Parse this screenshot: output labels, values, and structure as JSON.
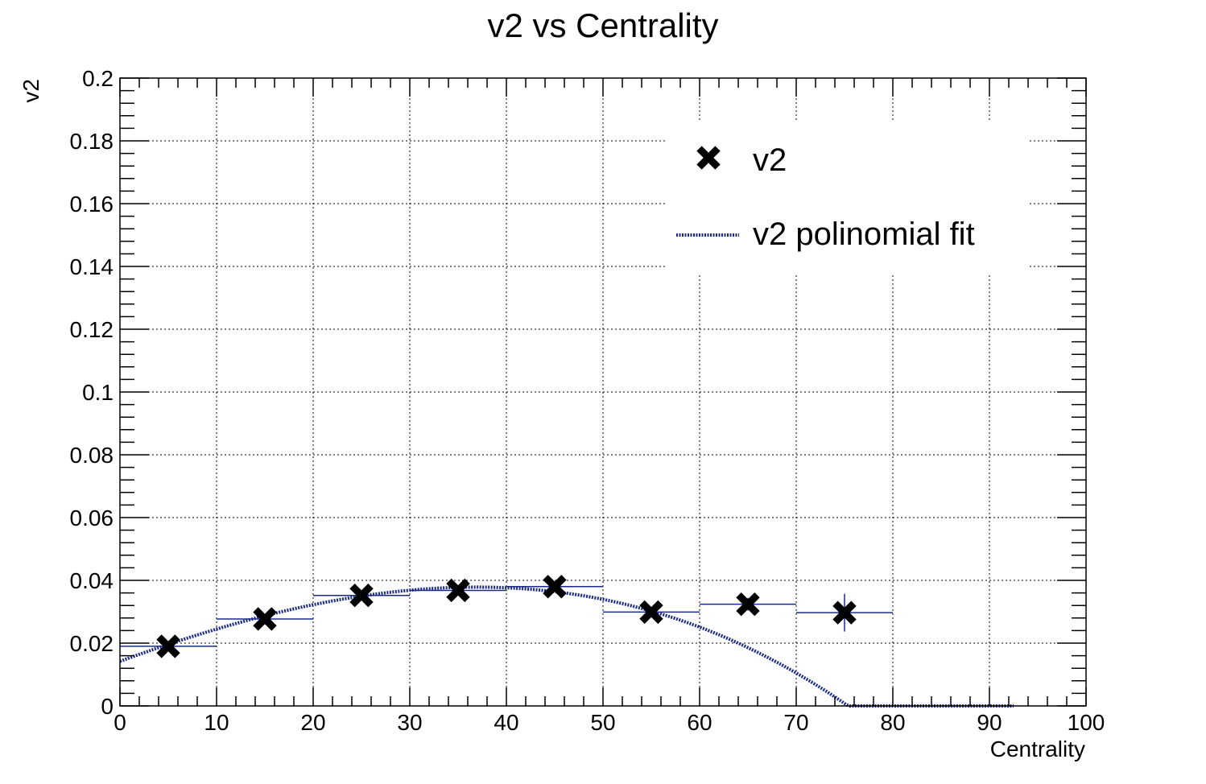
{
  "chart_data": {
    "type": "scatter",
    "title": "v2 vs Centrality",
    "xlabel": "Centrality",
    "ylabel": "v2",
    "xlim": [
      0,
      100
    ],
    "ylim": [
      0,
      0.2
    ],
    "grid": true,
    "x_ticks": [
      0,
      10,
      20,
      30,
      40,
      50,
      60,
      70,
      80,
      90,
      100
    ],
    "x_tick_labels": [
      "0",
      "10",
      "20",
      "30",
      "40",
      "50",
      "60",
      "70",
      "80",
      "90",
      "100"
    ],
    "y_ticks": [
      0,
      0.02,
      0.04,
      0.06,
      0.08,
      0.1,
      0.12,
      0.14,
      0.16,
      0.18,
      0.2
    ],
    "y_tick_labels": [
      "0",
      "0.02",
      "0.04",
      "0.06",
      "0.08",
      "0.1",
      "0.12",
      "0.14",
      "0.16",
      "0.18",
      "0.2"
    ],
    "legend_position": "top-right",
    "series": [
      {
        "name": "v2",
        "kind": "points",
        "marker": "x-cross",
        "color": "#000000",
        "x": [
          5,
          15,
          25,
          35,
          45,
          55,
          65,
          75
        ],
        "x_err": [
          5,
          5,
          5,
          5,
          5,
          5,
          5,
          5
        ],
        "y": [
          0.019,
          0.0277,
          0.0352,
          0.0368,
          0.038,
          0.0299,
          0.0324,
          0.0297
        ],
        "y_err": [
          0.001,
          0.001,
          0.001,
          0.001,
          0.0012,
          0.0012,
          0.002,
          0.006
        ]
      },
      {
        "name": "v2 polinomial fit",
        "kind": "line",
        "color": "#1a2a8c",
        "x_range": [
          0,
          92.5
        ],
        "coefficients": [
          0.0142,
          0.00113,
          -9.2e-06,
          -1.1e-07
        ]
      }
    ],
    "error_bar_color": "#1a2a8c"
  }
}
